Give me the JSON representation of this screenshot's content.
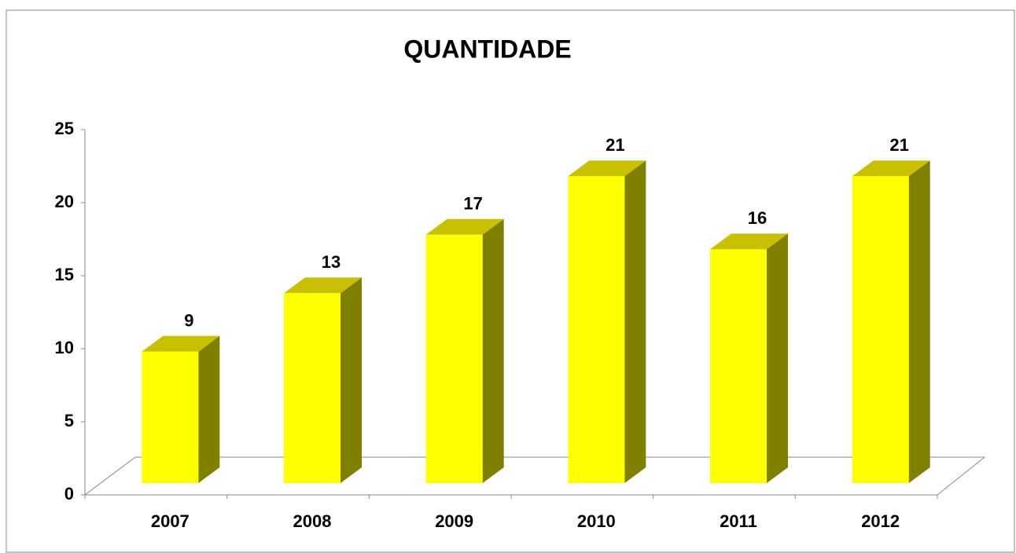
{
  "chart_data": {
    "type": "bar3d",
    "title": "QUANTIDADE",
    "categories": [
      "2007",
      "2008",
      "2009",
      "2010",
      "2011",
      "2012"
    ],
    "values": [
      9,
      13,
      17,
      21,
      16,
      21
    ],
    "colors": {
      "front": "#ffff00",
      "top": "#c8c000",
      "side": "#808000"
    },
    "ylim": [
      0,
      25
    ],
    "yticks": [
      0,
      5,
      10,
      15,
      20,
      25
    ],
    "grid": false
  }
}
